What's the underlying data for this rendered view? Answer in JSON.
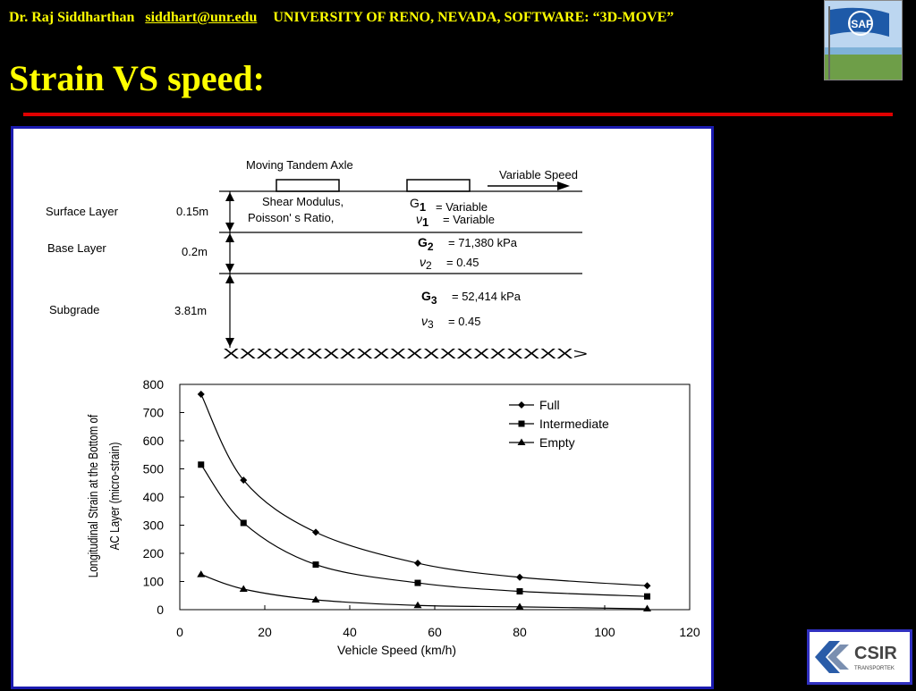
{
  "header": {
    "author": "Dr. Raj Siddharthan",
    "email": "siddhart@unr.edu",
    "affiliation": "UNIVERSITY OF RENO, NEVADA,  SOFTWARE: “3D-MOVE”"
  },
  "slide_title": "Strain VS speed:",
  "logos": {
    "top": "ISAP",
    "bottom": "CSIR",
    "bottom_sub": "TRANSPORTEK"
  },
  "diagram": {
    "axle_label": "Moving Tandem Axle",
    "speed_label": "Variable Speed",
    "layers": [
      {
        "name": "Surface Layer",
        "thickness": "0.15m"
      },
      {
        "name": "Base Layer",
        "thickness": "0.2m"
      },
      {
        "name": "Subgrade",
        "thickness": "3.81m"
      }
    ],
    "props": {
      "shear_modulus": "Shear Modulus,",
      "g1_sym": "G",
      "g1_sub": "1",
      "g1_val": "=  Variable",
      "poisson": "Poisson' s Ratio,",
      "nu1_sym": "ν",
      "nu1_sub": "1",
      "nu1_val": "=  Variable",
      "g2_sym": "G",
      "g2_sub": "2",
      "g2_val": "=   71,380 kPa",
      "nu2_sym": "ν",
      "nu2_sub": "2",
      "nu2_val": "=   0.45",
      "g3_sym": "G",
      "g3_sub": "3",
      "g3_val": "=   52,414 kPa",
      "nu3_sym": "ν",
      "nu3_sub": "3",
      "nu3_val": "=   0.45"
    },
    "bedrock": "XXXXXXXXXXXXXXXXXXXXX>"
  },
  "chart_data": {
    "type": "line",
    "xlabel": "Vehicle Speed (km/h)",
    "ylabel_line1": "Longitudinal Strain at the Bottom of",
    "ylabel_line2": "AC Layer (micro-strain)",
    "xlim": [
      0,
      120
    ],
    "ylim": [
      0,
      800
    ],
    "xticks": [
      0,
      20,
      40,
      60,
      80,
      100,
      120
    ],
    "yticks": [
      0,
      100,
      200,
      300,
      400,
      500,
      600,
      700,
      800
    ],
    "grid": false,
    "legend_position": "top-right",
    "x": [
      5,
      15,
      32,
      56,
      80,
      110
    ],
    "series": [
      {
        "name": "Full",
        "marker": "diamond",
        "values": [
          765,
          460,
          275,
          165,
          115,
          85
        ]
      },
      {
        "name": "Intermediate",
        "marker": "square",
        "values": [
          515,
          308,
          160,
          95,
          65,
          47
        ]
      },
      {
        "name": "Empty",
        "marker": "triangle",
        "values": [
          125,
          73,
          35,
          15,
          10,
          3
        ]
      }
    ]
  }
}
